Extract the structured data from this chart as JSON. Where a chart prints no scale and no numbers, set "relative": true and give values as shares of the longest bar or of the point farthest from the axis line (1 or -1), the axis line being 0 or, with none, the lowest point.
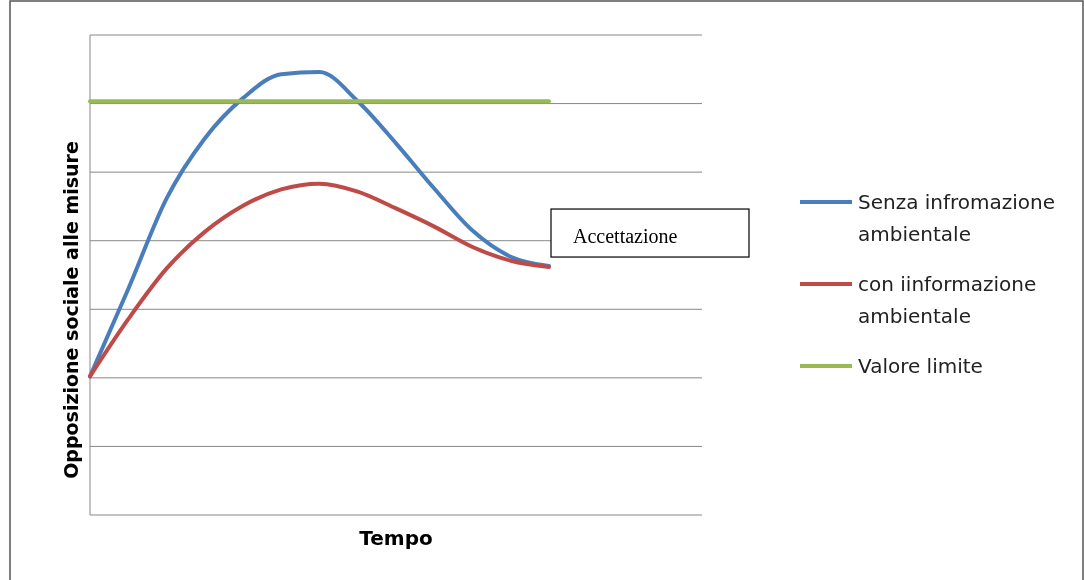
{
  "chart_data": {
    "type": "line",
    "relative": true,
    "xlabel": "Tempo",
    "ylabel": "Opposizione sociale alle misure",
    "categories": [
      null,
      null,
      null,
      null,
      null,
      null,
      null,
      null,
      null,
      null,
      null,
      null,
      null,
      null,
      null,
      null,
      null
    ],
    "grid": "y",
    "legend": "right",
    "marker": "none",
    "line_style": "solid",
    "annotations": [
      "Accettazione"
    ],
    "series": [
      {
        "name": "Senza infromazione ambientale",
        "color": "#4a7ebb",
        "values": [
          0.313,
          0.51,
          0.714,
          0.85,
          0.941,
          0.995,
          1,
          0.934,
          0.839,
          0.737,
          0.642,
          0.583,
          0.562,
          null,
          null,
          null,
          null
        ]
      },
      {
        "name": "con iinformazione ambientale",
        "color": "#be4b48",
        "values": [
          0.313,
          0.442,
          0.556,
          0.639,
          0.698,
          0.735,
          0.748,
          0.73,
          0.692,
          0.651,
          0.605,
          0.574,
          0.56,
          null,
          null,
          null,
          null
        ]
      },
      {
        "name": "Valore limite",
        "color": "#98b954",
        "values": [
          0.934,
          0.934,
          0.934,
          0.934,
          0.934,
          0.934,
          0.934,
          0.934,
          0.934,
          0.934,
          0.934,
          0.934,
          0.934,
          null,
          null,
          null,
          null
        ]
      }
    ]
  }
}
